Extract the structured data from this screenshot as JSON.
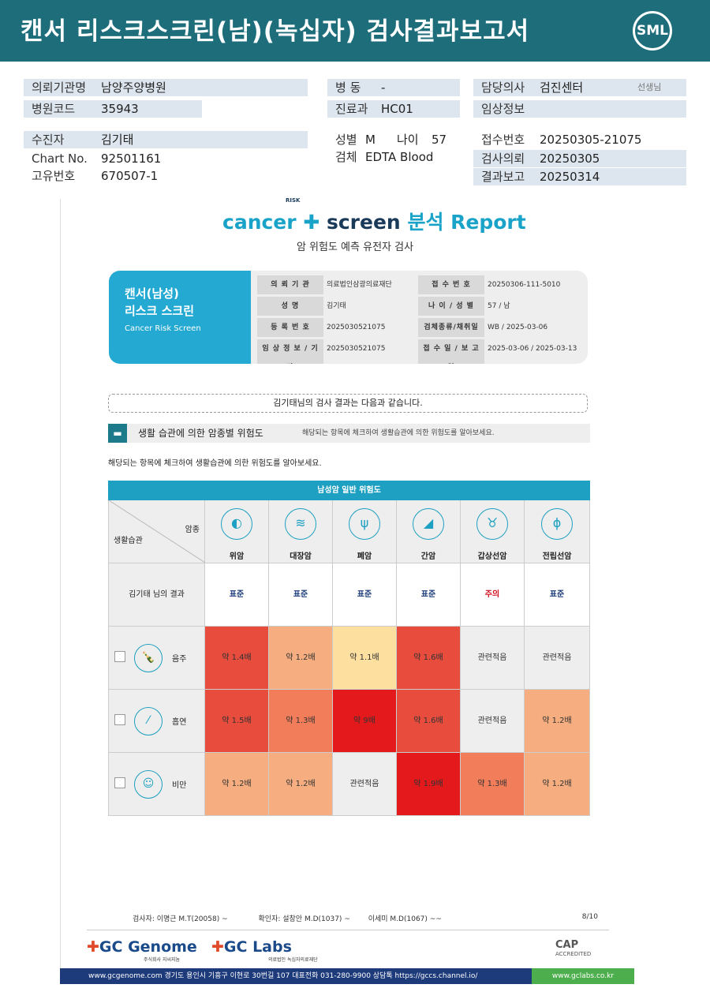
{
  "header": {
    "title": "캔서 리스크스크린(남)(녹십자) 검사결과보고서",
    "logo": "SML"
  },
  "info": {
    "institution_label": "의뢰기관명",
    "institution": "남양주양병원",
    "hospital_code_label": "병원코드",
    "hospital_code": "35943",
    "ward_label": "병 동",
    "ward": "-",
    "dept_label": "진료과",
    "dept": "HC01",
    "doctor_label": "담당의사",
    "doctor": "검진센터",
    "doctor_suffix": "선생님",
    "clinical_label": "임상정보",
    "clinical": "",
    "patient_label": "수진자",
    "patient": "김기태",
    "chart_label": "Chart No.",
    "chart": "92501161",
    "uid_label": "고유번호",
    "uid": "670507-1",
    "sex_label": "성별",
    "sex": "M",
    "age_label": "나이",
    "age": "57",
    "specimen_label": "검체",
    "specimen": "EDTA Blood",
    "receipt_label": "접수번호",
    "receipt": "20250305-21075",
    "request_label": "검사의뢰",
    "request": "20250305",
    "report_label": "결과보고",
    "report": "20250314"
  },
  "report": {
    "brand_a": "cancer",
    "brand_b": "screen",
    "brand_c": "분석 Report",
    "brand_risk": "RISK",
    "subtitle": "암 위험도 예측 유전자 검사",
    "card": {
      "title_1": "캔서(남성)",
      "title_2": "리스크 스크린",
      "title_en": "Cancer Risk Screen",
      "rows": [
        {
          "l1": "의 뢰 기 관",
          "v1": "의료법인삼광의료재단",
          "l2": "접 수 번 호",
          "v2": "20250306-111-5010"
        },
        {
          "l1": "성 명",
          "v1": "김기태",
          "l2": "나 이 / 성 별",
          "v2": "57 / 남"
        },
        {
          "l1": "등 록 번 호",
          "v1": "2025030521075",
          "l2": "검체종류/채취일",
          "v2": "WB / 2025-03-06"
        },
        {
          "l1": "임 상 정 보 / 기 타",
          "v1": "2025030521075",
          "l2": "접 수 일 / 보 고 일",
          "v2": "2025-03-06 / 2025-03-13"
        }
      ]
    },
    "notice": "김기태님의 검사 결과는 다음과 같습니다.",
    "section_title": "생활 습관에 의한 암종별 위험도",
    "section_note": "해당되는 항목에 체크하여 생활습관에 의한 위험도를 알아보세요.",
    "instruction": "해당되는 항목에 체크하여 생활습관에 의한 위험도를 알아보세요.",
    "table": {
      "head": "남성암 일반 위험도",
      "corner_top": "암종",
      "corner_bottom": "생활습관",
      "cancers": [
        "위암",
        "대장암",
        "폐암",
        "간암",
        "갑상선암",
        "전립선암"
      ],
      "result_label": "김기태 님의 결과",
      "results": [
        "표준",
        "표준",
        "표준",
        "표준",
        "주의",
        "표준"
      ],
      "habits": [
        {
          "name": "음주",
          "values": [
            "약 1.4배",
            "약 1.2배",
            "약 1.1배",
            "약 1.6배",
            "관련적음",
            "관련적음"
          ],
          "colors": [
            "#e84c3d",
            "#f6ae80",
            "#fde0a0",
            "#e84c3d",
            "#eeeeee",
            "#eeeeee"
          ]
        },
        {
          "name": "흡연",
          "values": [
            "약 1.5배",
            "약 1.3배",
            "약 9배",
            "약 1.6배",
            "관련적음",
            "약 1.2배"
          ],
          "colors": [
            "#e84c3d",
            "#f27d5a",
            "#e3191c",
            "#e84c3d",
            "#eeeeee",
            "#f6ae80"
          ]
        },
        {
          "name": "비만",
          "values": [
            "약 1.2배",
            "약 1.2배",
            "관련적음",
            "약 1.9배",
            "약 1.3배",
            "약 1.2배"
          ],
          "colors": [
            "#f6ae80",
            "#f6ae80",
            "#eeeeee",
            "#e3191c",
            "#f27d5a",
            "#f6ae80"
          ]
        }
      ]
    },
    "footer": {
      "tester": "검사자: 이명근 M.T(20058)",
      "confirmer": "확인자: 설창안 M.D(1037)",
      "confirmer2": "이세미 M.D(1067)",
      "page": "8/10",
      "gc_genome": "GC Genome",
      "gc_genome_sub": "주식회사 지씨지놈",
      "gc_labs": "GC Labs",
      "gc_labs_sub": "의료법인 녹십자의료재단",
      "cap": "CAP",
      "cap_sub": "ACCREDITED",
      "address": "www.gcgenome.com 경기도 용인시 기흥구 이현로 30번길 107 대표전화 031-280-9900 상담톡 https://gccs.channel.io/",
      "url": "www.gclabs.co.kr"
    }
  }
}
